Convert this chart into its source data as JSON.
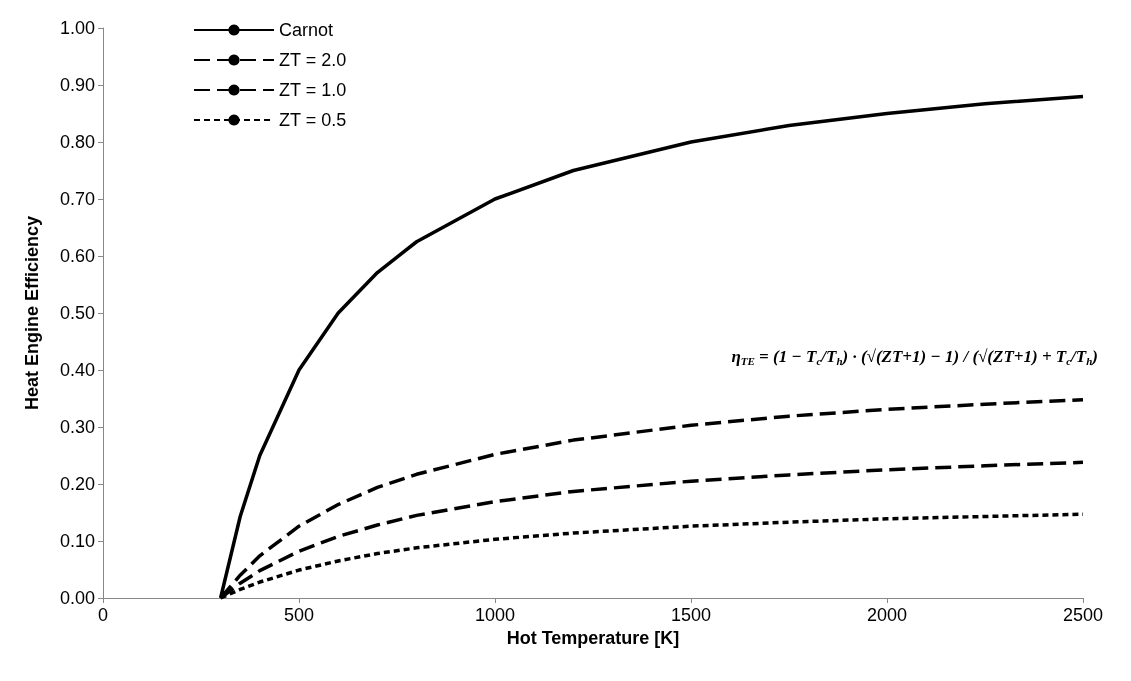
{
  "chart_data": {
    "type": "line",
    "xlabel": "Hot Temperature [K]",
    "ylabel": "Heat Engine Efficiency",
    "x": [
      300,
      350,
      400,
      500,
      600,
      700,
      800,
      1000,
      1200,
      1500,
      1750,
      2000,
      2250,
      2500
    ],
    "series": [
      {
        "name": "Carnot",
        "color": "#000000",
        "line_style": "solid",
        "values": [
          0,
          0.143,
          0.25,
          0.4,
          0.5,
          0.571,
          0.625,
          0.7,
          0.75,
          0.8,
          0.829,
          0.85,
          0.867,
          0.88
        ]
      },
      {
        "name": "ZT = 2.0",
        "color": "#000000",
        "line_style": "dashed",
        "values": [
          0,
          0.04,
          0.074,
          0.126,
          0.164,
          0.194,
          0.217,
          0.252,
          0.277,
          0.303,
          0.319,
          0.331,
          0.34,
          0.348
        ]
      },
      {
        "name": "ZT = 1.0",
        "color": "#000000",
        "line_style": "dashed",
        "values": [
          0,
          0.026,
          0.048,
          0.082,
          0.108,
          0.128,
          0.145,
          0.169,
          0.187,
          0.205,
          0.216,
          0.225,
          0.232,
          0.238
        ]
      },
      {
        "name": "ZT = 0.5",
        "color": "#000000",
        "line_style": "dotted",
        "values": [
          0,
          0.015,
          0.028,
          0.049,
          0.065,
          0.078,
          0.088,
          0.103,
          0.114,
          0.126,
          0.133,
          0.139,
          0.143,
          0.147
        ]
      }
    ],
    "xlim": [
      0,
      2500
    ],
    "xticks": [
      0,
      500,
      1000,
      1500,
      2000,
      2500
    ],
    "ylim": [
      0,
      1
    ],
    "yticks": [
      {
        "value": 0,
        "label": "0.00"
      },
      {
        "value": 0.1,
        "label": "0.10"
      },
      {
        "value": 0.2,
        "label": "0.20"
      },
      {
        "value": 0.3,
        "label": "0.30"
      },
      {
        "value": 0.4,
        "label": "0.40"
      },
      {
        "value": 0.5,
        "label": "0.50"
      },
      {
        "value": 0.6,
        "label": "0.60"
      },
      {
        "value": 0.7,
        "label": "0.70"
      },
      {
        "value": 0.8,
        "label": "0.80"
      },
      {
        "value": 0.9,
        "label": "0.90"
      },
      {
        "value": 1,
        "label": "1.00"
      }
    ],
    "annotations": [
      "η$_{TE}$ = (1 − T$_{c}$/T$_{h}$) · (√(ZT+1) − 1) / (√(ZT+1) + T$_{c}$/T$_{h}$)"
    ],
    "grid": false,
    "legend": "top left",
    "marker": "none"
  }
}
